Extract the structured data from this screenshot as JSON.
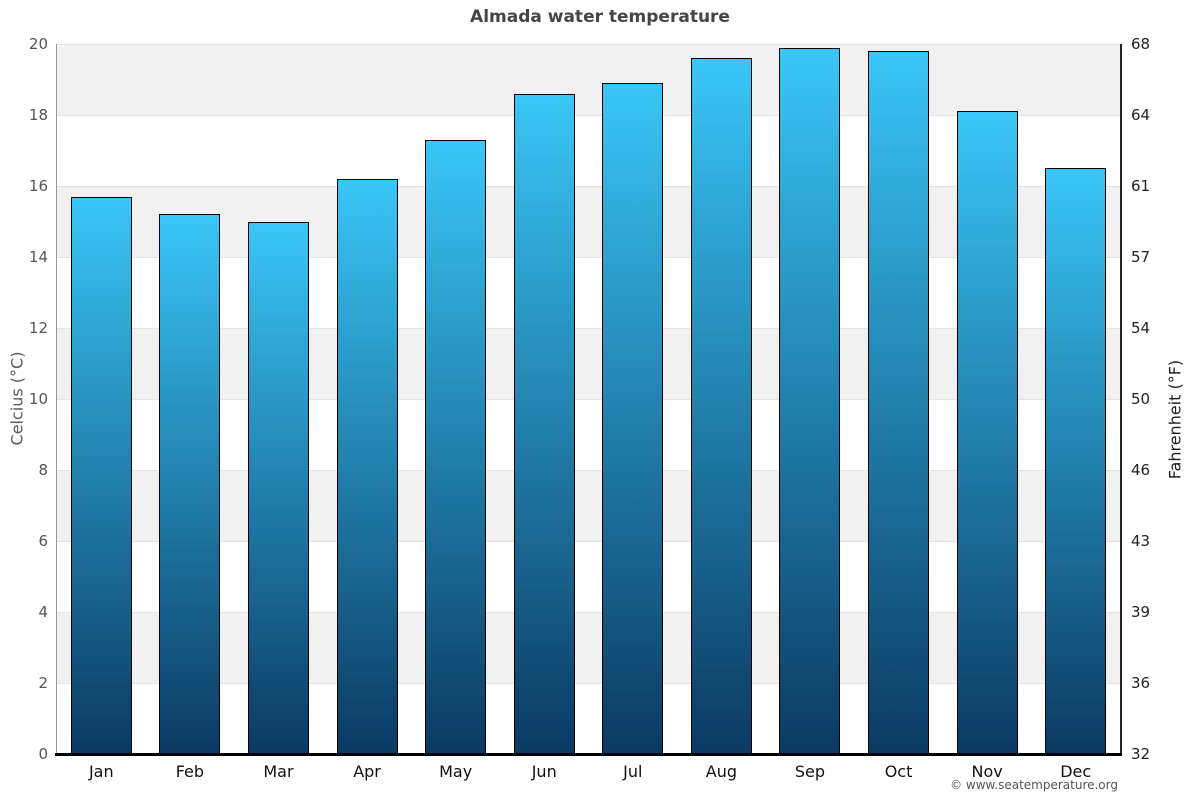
{
  "title": "Almada water temperature",
  "footer": "© www.seatemperature.org",
  "axes": {
    "left_label": "Celcius (°C)",
    "right_label": "Fahrenheit (°F)",
    "left_ticks": [
      0,
      2,
      4,
      6,
      8,
      10,
      12,
      14,
      16,
      18,
      20
    ],
    "right_ticks": [
      "32",
      "36",
      "39",
      "43",
      "46",
      "50",
      "54",
      "57",
      "61",
      "64",
      "68"
    ]
  },
  "chart_data": {
    "type": "bar",
    "title": "Almada water temperature",
    "categories": [
      "Jan",
      "Feb",
      "Mar",
      "Apr",
      "May",
      "Jun",
      "Jul",
      "Aug",
      "Sep",
      "Oct",
      "Nov",
      "Dec"
    ],
    "values": [
      15.7,
      15.2,
      15.0,
      16.2,
      17.3,
      18.6,
      18.9,
      19.6,
      19.9,
      19.8,
      18.1,
      16.5
    ],
    "xlabel": "",
    "ylabel": "Celcius (°C)",
    "y2label": "Fahrenheit (°F)",
    "ylim": [
      0,
      20
    ],
    "y2lim": [
      32,
      68
    ],
    "grid": "horizontal-bands-2C",
    "legend_position": "none",
    "colors": {
      "bar_gradient_top": "#39c6f6",
      "bar_gradient_bottom": "#0b3a63",
      "bar_border": "#000000",
      "band_shade": "#f1f1f1",
      "band_alt": "#ffffff",
      "gridline": "#e3e3e3",
      "left_axis_line": "#979797",
      "right_axis_line": "#222222",
      "bottom_axis_line": "#000000",
      "title_text": "#454545",
      "left_tick_text": "#555555",
      "right_tick_text": "#222222",
      "month_text": "#111111"
    }
  }
}
